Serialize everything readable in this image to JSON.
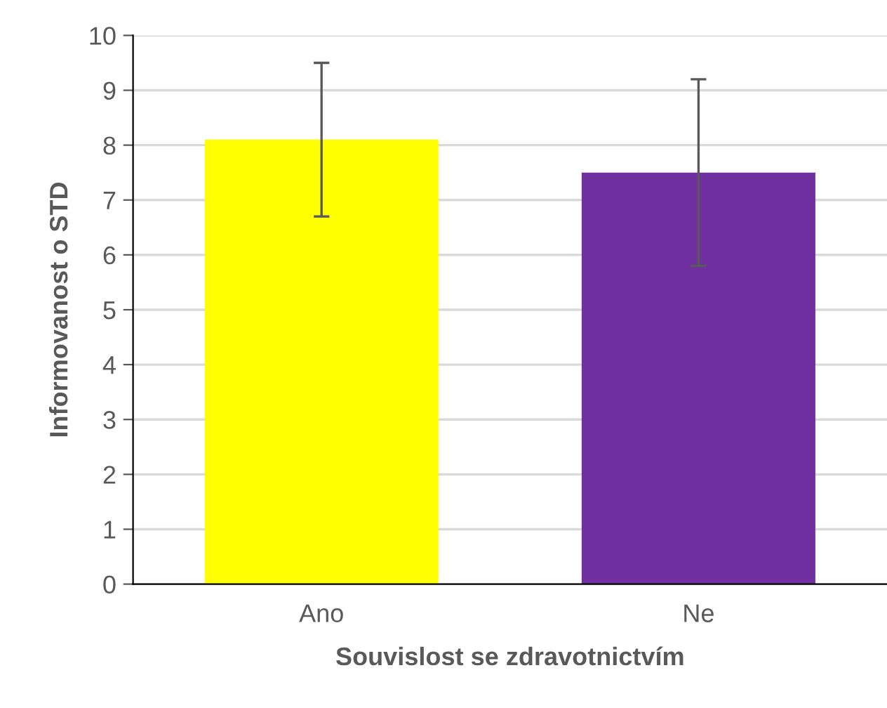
{
  "chart_data": {
    "type": "bar",
    "xlabel": "Souvislost se zdravotnictvím",
    "ylabel": "Informovanost o STD",
    "categories": [
      "Ano",
      "Ne"
    ],
    "values": [
      8.1,
      7.5
    ],
    "colors": [
      "#ffff00",
      "#7030a0"
    ],
    "errors": [
      [
        6.7,
        9.5
      ],
      [
        5.8,
        9.2
      ]
    ],
    "ylim": [
      0,
      10
    ],
    "yticks": [
      0,
      1,
      2,
      3,
      4,
      5,
      6,
      7,
      8,
      9,
      10
    ],
    "grid": "y",
    "legend": false
  }
}
